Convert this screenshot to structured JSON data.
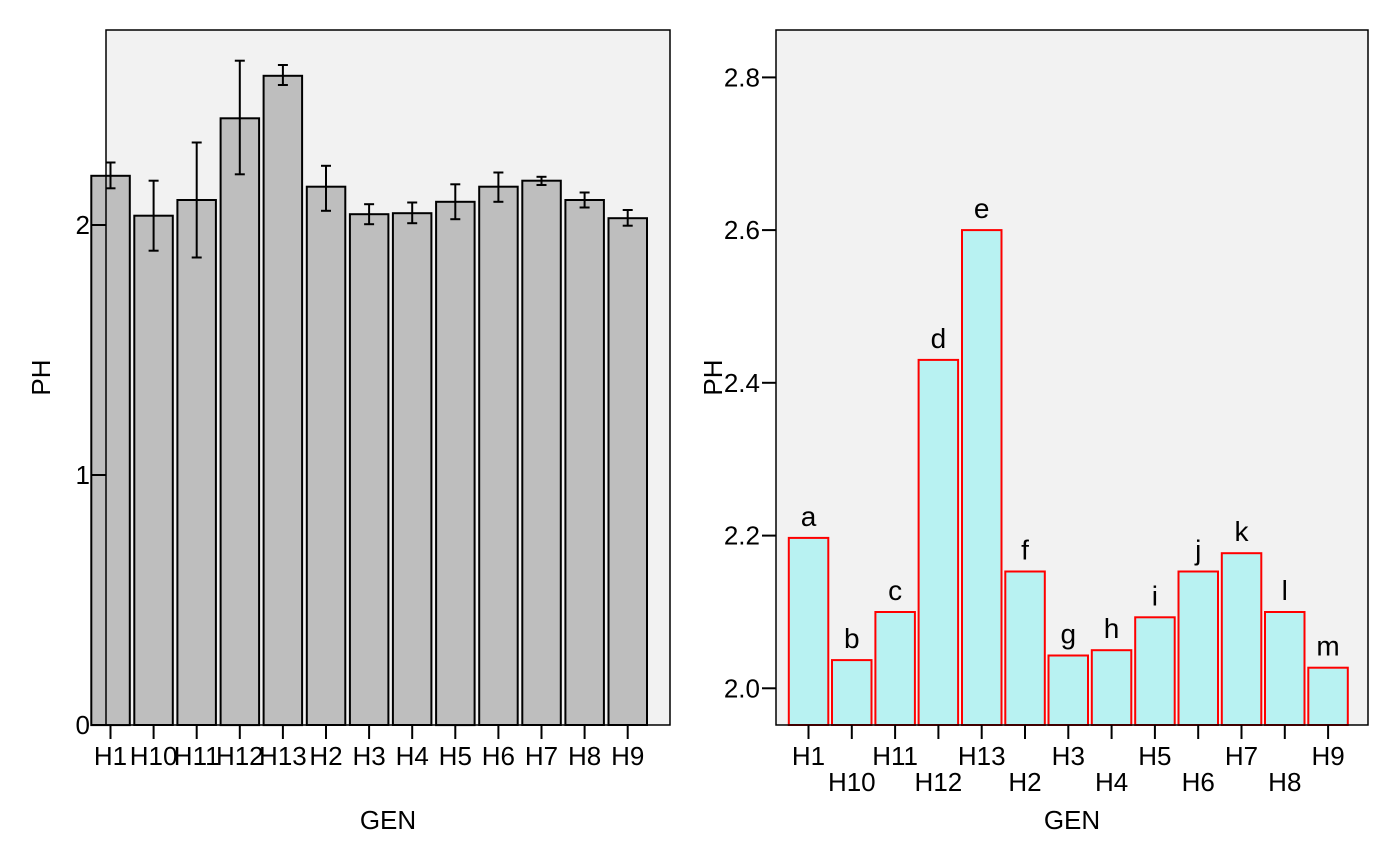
{
  "chart_data": [
    {
      "type": "bar",
      "xlabel": "GEN",
      "ylabel": "PH",
      "categories": [
        "H1",
        "H10",
        "H11",
        "H12",
        "H13",
        "H2",
        "H3",
        "H4",
        "H5",
        "H6",
        "H7",
        "H8",
        "H9"
      ],
      "values": [
        2.197,
        2.037,
        2.1,
        2.427,
        2.597,
        2.153,
        2.043,
        2.047,
        2.093,
        2.153,
        2.177,
        2.1,
        2.027
      ],
      "error_low": [
        2.147,
        1.897,
        1.87,
        2.203,
        2.56,
        2.057,
        2.003,
        2.007,
        2.023,
        2.093,
        2.16,
        2.07,
        1.997
      ],
      "error_high": [
        2.25,
        2.177,
        2.33,
        2.657,
        2.64,
        2.237,
        2.083,
        2.09,
        2.163,
        2.21,
        2.193,
        2.13,
        2.06
      ],
      "ylim": [
        0,
        2.78
      ],
      "yticks": [
        "0",
        "1",
        "2"
      ],
      "ytick_values": [
        0,
        1,
        2
      ],
      "bar_fill": "#bebebe",
      "bar_stroke": "#000000",
      "panel_background": "#f2f2f2",
      "grid": false,
      "legend": "none"
    },
    {
      "type": "bar",
      "xlabel": "GEN",
      "ylabel": "PH",
      "categories": [
        "H1",
        "H10",
        "H11",
        "H12",
        "H13",
        "H2",
        "H3",
        "H4",
        "H5",
        "H6",
        "H7",
        "H8",
        "H9"
      ],
      "values": [
        2.197,
        2.037,
        2.1,
        2.43,
        2.6,
        2.153,
        2.043,
        2.05,
        2.093,
        2.153,
        2.177,
        2.1,
        2.027
      ],
      "labels": [
        "a",
        "b",
        "c",
        "d",
        "e",
        "f",
        "g",
        "h",
        "i",
        "j",
        "k",
        "l",
        "m"
      ],
      "ylim": [
        1.952,
        2.862
      ],
      "yticks": [
        "2.0",
        "2.2",
        "2.4",
        "2.6",
        "2.8"
      ],
      "ytick_values": [
        2.0,
        2.2,
        2.4,
        2.6,
        2.8
      ],
      "bar_fill": "#b8f2f2",
      "bar_stroke": "#ff0000",
      "panel_background": "#f2f2f2",
      "grid": false,
      "legend": "none"
    }
  ]
}
